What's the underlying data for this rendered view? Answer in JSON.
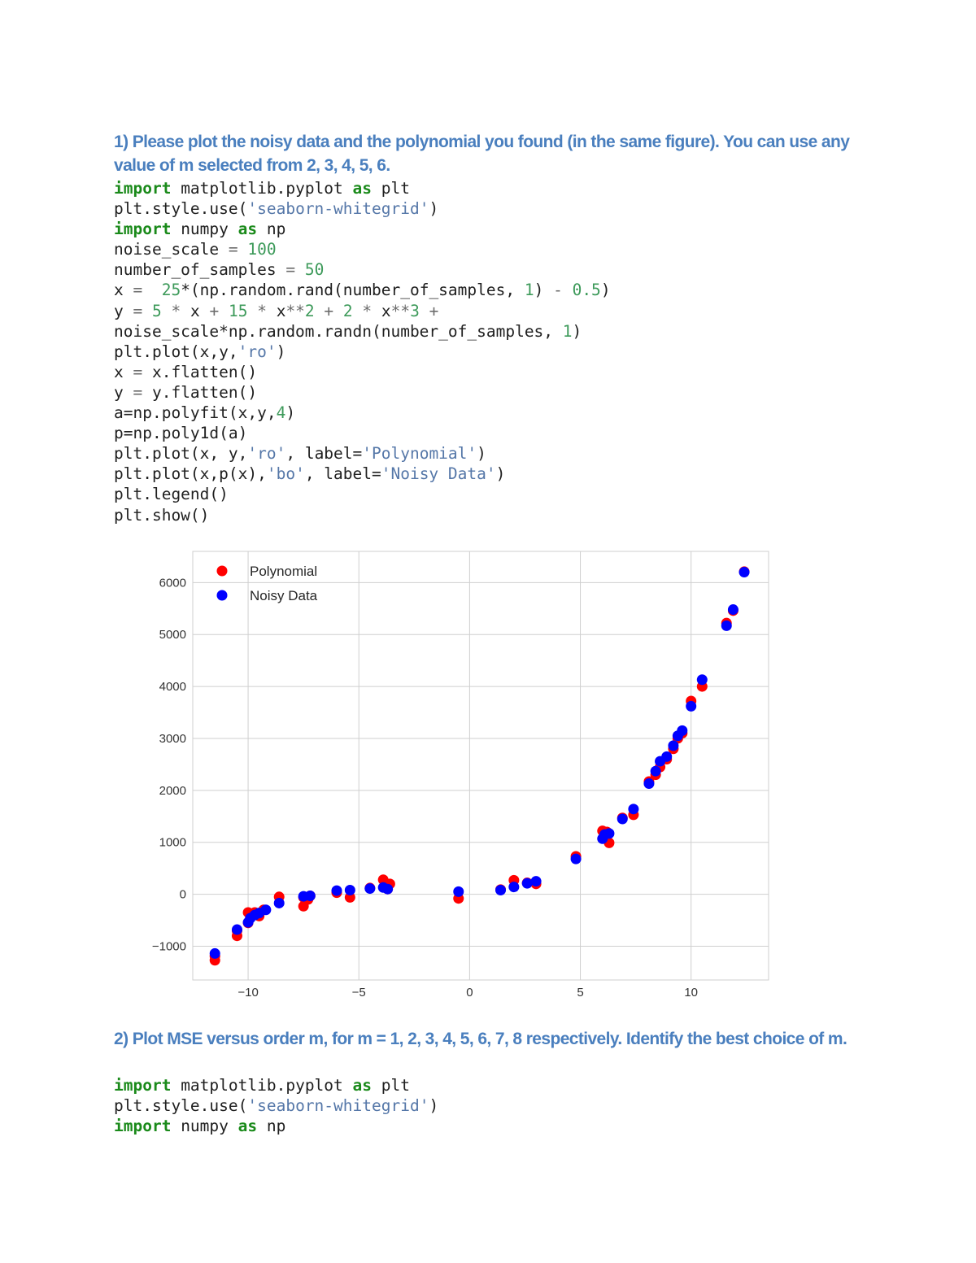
{
  "question1": {
    "heading": "1) Please plot the noisy data and the polynomial you found (in the same figure). You can use any value of m selected from 2, 3, 4, 5, 6."
  },
  "code1": {
    "lines": [
      [
        [
          "kw",
          "import"
        ],
        [
          "t",
          " matplotlib.pyplot "
        ],
        [
          "kw",
          "as"
        ],
        [
          "t",
          " plt"
        ]
      ],
      [
        [
          "t",
          "plt.style.use("
        ],
        [
          "str",
          "'seaborn-whitegrid'"
        ],
        [
          "t",
          ")"
        ]
      ],
      [
        [
          "kw",
          "import"
        ],
        [
          "t",
          " numpy "
        ],
        [
          "kw",
          "as"
        ],
        [
          "t",
          " np"
        ]
      ],
      [
        [
          "t",
          "noise_scale "
        ],
        [
          "op",
          "="
        ],
        [
          "t",
          " "
        ],
        [
          "num",
          "100"
        ]
      ],
      [
        [
          "t",
          "number_of_samples "
        ],
        [
          "op",
          "="
        ],
        [
          "t",
          " "
        ],
        [
          "num",
          "50"
        ]
      ],
      [
        [
          "t",
          "x "
        ],
        [
          "op",
          "="
        ],
        [
          "t",
          "  "
        ],
        [
          "num",
          "25"
        ],
        [
          "t",
          "*(np.random.rand(number_of_samples, "
        ],
        [
          "num",
          "1"
        ],
        [
          "t",
          ") "
        ],
        [
          "op",
          "-"
        ],
        [
          "t",
          " "
        ],
        [
          "num",
          "0.5"
        ],
        [
          "t",
          ")"
        ]
      ],
      [
        [
          "t",
          "y "
        ],
        [
          "op",
          "="
        ],
        [
          "t",
          " "
        ],
        [
          "num",
          "5"
        ],
        [
          "t",
          " "
        ],
        [
          "op",
          "*"
        ],
        [
          "t",
          " x "
        ],
        [
          "op",
          "+"
        ],
        [
          "t",
          " "
        ],
        [
          "num",
          "15"
        ],
        [
          "t",
          " "
        ],
        [
          "op",
          "*"
        ],
        [
          "t",
          " x"
        ],
        [
          "op",
          "**"
        ],
        [
          "num",
          "2"
        ],
        [
          "t",
          " "
        ],
        [
          "op",
          "+"
        ],
        [
          "t",
          " "
        ],
        [
          "num",
          "2"
        ],
        [
          "t",
          " "
        ],
        [
          "op",
          "*"
        ],
        [
          "t",
          " x"
        ],
        [
          "op",
          "**"
        ],
        [
          "num",
          "3"
        ],
        [
          "t",
          " "
        ],
        [
          "op",
          "+"
        ]
      ],
      [
        [
          "t",
          "noise_scale*np.random.randn(number_of_samples, "
        ],
        [
          "num",
          "1"
        ],
        [
          "t",
          ")"
        ]
      ],
      [
        [
          "t",
          "plt.plot(x,y,"
        ],
        [
          "str",
          "'ro'"
        ],
        [
          "t",
          ")"
        ]
      ],
      [
        [
          "t",
          "x "
        ],
        [
          "op",
          "="
        ],
        [
          "t",
          " x.flatten()"
        ]
      ],
      [
        [
          "t",
          "y "
        ],
        [
          "op",
          "="
        ],
        [
          "t",
          " y.flatten()"
        ]
      ],
      [
        [
          "t",
          "a=np.polyfit(x,y,"
        ],
        [
          "num",
          "4"
        ],
        [
          "t",
          ")"
        ]
      ],
      [
        [
          "t",
          "p=np.poly1d(a)"
        ]
      ],
      [
        [
          "t",
          "plt.plot(x, y,"
        ],
        [
          "str",
          "'ro'"
        ],
        [
          "t",
          ", label="
        ],
        [
          "str",
          "'Polynomial'"
        ],
        [
          "t",
          ")"
        ]
      ],
      [
        [
          "t",
          "plt.plot(x,p(x),"
        ],
        [
          "str",
          "'bo'"
        ],
        [
          "t",
          ", label="
        ],
        [
          "str",
          "'Noisy Data'"
        ],
        [
          "t",
          ")"
        ]
      ],
      [
        [
          "t",
          "plt.legend()"
        ]
      ],
      [
        [
          "t",
          "plt.show()"
        ]
      ]
    ]
  },
  "question2": {
    "heading": "2) Plot MSE versus order m, for m = 1, 2, 3, 4, 5, 6, 7, 8 respectively. Identify the best choice of m."
  },
  "code2": {
    "lines": [
      [
        [
          "kw",
          "import"
        ],
        [
          "t",
          " matplotlib.pyplot "
        ],
        [
          "kw",
          "as"
        ],
        [
          "t",
          " plt"
        ]
      ],
      [
        [
          "t",
          "plt.style.use("
        ],
        [
          "str",
          "'seaborn-whitegrid'"
        ],
        [
          "t",
          ")"
        ]
      ],
      [
        [
          "kw",
          "import"
        ],
        [
          "t",
          " numpy "
        ],
        [
          "kw",
          "as"
        ],
        [
          "t",
          " np"
        ]
      ]
    ]
  },
  "chart_data": {
    "type": "scatter",
    "title": "",
    "xlabel": "",
    "ylabel": "",
    "xlim": [
      -12.5,
      13.5
    ],
    "ylim": [
      -1650,
      6600
    ],
    "xticks": [
      -10,
      -5,
      0,
      5,
      10
    ],
    "xtick_labels": [
      "−10",
      "−5",
      "0",
      "5",
      "10"
    ],
    "yticks": [
      -1000,
      0,
      1000,
      2000,
      3000,
      4000,
      5000,
      6000
    ],
    "ytick_labels": [
      "−1000",
      "0",
      "1000",
      "2000",
      "3000",
      "4000",
      "5000",
      "6000"
    ],
    "grid": true,
    "legend_position": "top-left",
    "series": [
      {
        "name": "Polynomial",
        "color": "#ff0000",
        "points": [
          [
            -11.5,
            -1270
          ],
          [
            -11.5,
            -1190
          ],
          [
            -10.5,
            -800
          ],
          [
            -10.5,
            -700
          ],
          [
            -10.0,
            -550
          ],
          [
            -10.0,
            -350
          ],
          [
            -9.9,
            -450
          ],
          [
            -9.7,
            -350
          ],
          [
            -9.5,
            -420
          ],
          [
            -9.3,
            -300
          ],
          [
            -8.6,
            -50
          ],
          [
            -7.5,
            -230
          ],
          [
            -7.3,
            -100
          ],
          [
            -7.5,
            -60
          ],
          [
            -7.2,
            -30
          ],
          [
            -6.0,
            30
          ],
          [
            -5.4,
            -60
          ],
          [
            -4.5,
            120
          ],
          [
            -3.9,
            280
          ],
          [
            -3.6,
            200
          ],
          [
            -3.7,
            100
          ],
          [
            -0.5,
            -80
          ],
          [
            1.4,
            90
          ],
          [
            2.0,
            270
          ],
          [
            2.6,
            220
          ],
          [
            3.0,
            200
          ],
          [
            4.8,
            730
          ],
          [
            6.0,
            1220
          ],
          [
            6.1,
            1080
          ],
          [
            6.2,
            1200
          ],
          [
            6.3,
            990
          ],
          [
            6.9,
            1470
          ],
          [
            7.4,
            1530
          ],
          [
            8.1,
            2170
          ],
          [
            8.4,
            2300
          ],
          [
            8.6,
            2450
          ],
          [
            8.9,
            2600
          ],
          [
            9.2,
            2800
          ],
          [
            9.4,
            3000
          ],
          [
            9.6,
            3100
          ],
          [
            10.0,
            3720
          ],
          [
            10.5,
            4000
          ],
          [
            11.6,
            5220
          ],
          [
            11.9,
            5460
          ],
          [
            12.4,
            6210
          ]
        ]
      },
      {
        "name": "Noisy Data",
        "color": "#0000ff",
        "points": [
          [
            -11.5,
            -1140
          ],
          [
            -10.5,
            -680
          ],
          [
            -10.0,
            -540
          ],
          [
            -9.9,
            -460
          ],
          [
            -9.7,
            -400
          ],
          [
            -9.5,
            -360
          ],
          [
            -9.2,
            -300
          ],
          [
            -8.6,
            -170
          ],
          [
            -7.5,
            -40
          ],
          [
            -7.2,
            -30
          ],
          [
            -6.0,
            70
          ],
          [
            -5.4,
            80
          ],
          [
            -4.5,
            110
          ],
          [
            -3.9,
            130
          ],
          [
            -3.7,
            100
          ],
          [
            -0.5,
            50
          ],
          [
            1.4,
            80
          ],
          [
            2.0,
            140
          ],
          [
            2.6,
            210
          ],
          [
            3.0,
            250
          ],
          [
            4.8,
            680
          ],
          [
            6.0,
            1070
          ],
          [
            6.1,
            1150
          ],
          [
            6.3,
            1170
          ],
          [
            6.9,
            1450
          ],
          [
            7.4,
            1640
          ],
          [
            8.1,
            2130
          ],
          [
            8.4,
            2370
          ],
          [
            8.6,
            2560
          ],
          [
            8.9,
            2650
          ],
          [
            9.2,
            2860
          ],
          [
            9.4,
            3050
          ],
          [
            9.6,
            3150
          ],
          [
            10.0,
            3620
          ],
          [
            10.5,
            4130
          ],
          [
            11.6,
            5170
          ],
          [
            11.9,
            5480
          ],
          [
            12.4,
            6200
          ]
        ]
      }
    ]
  }
}
